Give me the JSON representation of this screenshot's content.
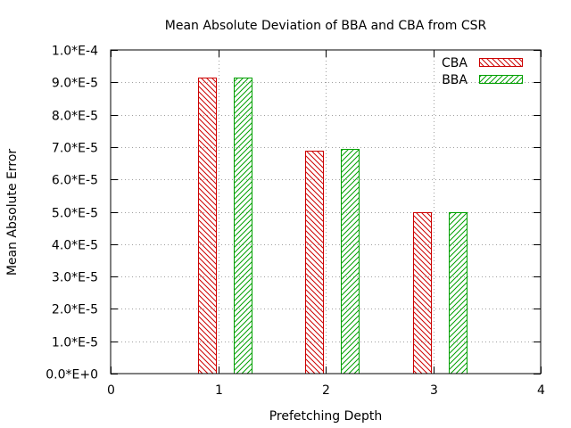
{
  "chart_data": {
    "type": "bar",
    "title": "Mean Absolute Deviation of BBA and CBA from CSR",
    "xlabel": "Prefetching Depth",
    "ylabel": "Mean Absolute Error",
    "xlim": [
      0,
      4
    ],
    "ylim": [
      0,
      0.0001
    ],
    "x_ticks": [
      0,
      1,
      2,
      3,
      4
    ],
    "x_tick_labels": [
      "0",
      "1",
      "2",
      "3",
      "4"
    ],
    "y_ticks": [
      0,
      1e-05,
      2e-05,
      3e-05,
      4e-05,
      5e-05,
      6e-05,
      7e-05,
      8e-05,
      9e-05,
      0.0001
    ],
    "y_tick_labels": [
      "0.0*E+0",
      "1.0*E-5",
      "2.0*E-5",
      "3.0*E-5",
      "4.0*E-5",
      "5.0*E-5",
      "6.0*E-5",
      "7.0*E-5",
      "8.0*E-5",
      "9.0*E-5",
      "1.0*E-4"
    ],
    "x": [
      1,
      2,
      3
    ],
    "grid": true,
    "legend_position": "top-right",
    "series": [
      {
        "name": "CBA",
        "color": "#cc0000",
        "hatch": "backslash",
        "values": [
          9.15e-05,
          6.9e-05,
          5e-05
        ]
      },
      {
        "name": "BBA",
        "color": "#00a000",
        "hatch": "slash",
        "values": [
          9.15e-05,
          6.94e-05,
          5e-05
        ]
      }
    ]
  }
}
